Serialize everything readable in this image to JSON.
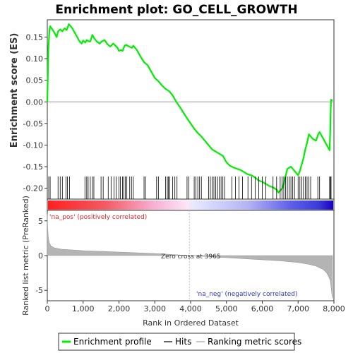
{
  "chart_data": [
    {
      "type": "line",
      "panel": "enrichment",
      "title": "Enrichment plot: GO_CELL_GROWTH",
      "ylabel": "Enrichment score (ES)",
      "xlim": [
        0,
        8000
      ],
      "ylim": [
        -0.225,
        0.19
      ],
      "yticks": [
        -0.2,
        -0.15,
        -0.1,
        -0.05,
        0.0,
        0.05,
        0.1,
        0.15
      ],
      "ytick_labels": [
        "-0.20",
        "-0.15",
        "-0.10",
        "-0.05",
        "0.00",
        "0.05",
        "0.10",
        "0.15"
      ],
      "series": [
        {
          "name": "Enrichment profile",
          "color": "#00ee00",
          "x": [
            0,
            30,
            60,
            80,
            200,
            260,
            300,
            360,
            420,
            480,
            540,
            600,
            700,
            800,
            900,
            960,
            1000,
            1060,
            1100,
            1160,
            1200,
            1260,
            1300,
            1380,
            1460,
            1520,
            1600,
            1680,
            1760,
            1840,
            1900,
            1960,
            2000,
            2060,
            2100,
            2160,
            2200,
            2280,
            2360,
            2400,
            2500,
            2600,
            2700,
            2800,
            2900,
            3000,
            3100,
            3200,
            3300,
            3400,
            3500,
            3600,
            3700,
            3800,
            3900,
            4000,
            4100,
            4200,
            4300,
            4400,
            4500,
            4600,
            4700,
            4800,
            4900,
            5000,
            5100,
            5200,
            5300,
            5400,
            5500,
            5600,
            5700,
            5800,
            5900,
            6000,
            6100,
            6200,
            6300,
            6400,
            6450,
            6500,
            6560,
            6600,
            6640,
            6700,
            6800,
            6900,
            7000,
            7050,
            7100,
            7150,
            7200,
            7250,
            7300,
            7400,
            7500,
            7560,
            7600,
            7700,
            7800,
            7880,
            7900,
            7910,
            7920,
            7960
          ],
          "y": [
            0.0,
            0.12,
            0.165,
            0.175,
            0.16,
            0.15,
            0.163,
            0.168,
            0.163,
            0.17,
            0.166,
            0.18,
            0.17,
            0.155,
            0.14,
            0.135,
            0.142,
            0.137,
            0.143,
            0.14,
            0.14,
            0.155,
            0.148,
            0.14,
            0.135,
            0.14,
            0.143,
            0.133,
            0.128,
            0.135,
            0.13,
            0.125,
            0.118,
            0.12,
            0.118,
            0.13,
            0.132,
            0.128,
            0.125,
            0.13,
            0.12,
            0.105,
            0.092,
            0.085,
            0.07,
            0.055,
            0.048,
            0.038,
            0.03,
            0.025,
            0.015,
            0.0,
            -0.012,
            -0.025,
            -0.038,
            -0.05,
            -0.062,
            -0.072,
            -0.08,
            -0.09,
            -0.1,
            -0.11,
            -0.115,
            -0.12,
            -0.125,
            -0.14,
            -0.148,
            -0.152,
            -0.155,
            -0.158,
            -0.163,
            -0.168,
            -0.17,
            -0.175,
            -0.182,
            -0.185,
            -0.19,
            -0.195,
            -0.198,
            -0.203,
            -0.21,
            -0.205,
            -0.2,
            -0.19,
            -0.175,
            -0.155,
            -0.15,
            -0.16,
            -0.17,
            -0.16,
            -0.145,
            -0.13,
            -0.11,
            -0.095,
            -0.075,
            -0.085,
            -0.09,
            -0.075,
            -0.07,
            -0.085,
            -0.1,
            -0.112,
            -0.06,
            -0.02,
            0.005,
            0.003
          ]
        }
      ]
    },
    {
      "type": "scatter",
      "panel": "hits",
      "series": [
        {
          "name": "Hits",
          "x": [
            40,
            80,
            300,
            360,
            420,
            520,
            560,
            620,
            1050,
            1100,
            1140,
            1200,
            1260,
            1300,
            1500,
            1560,
            1700,
            1780,
            1860,
            1920,
            2000,
            2040,
            2100,
            2140,
            2180,
            2220,
            2300,
            2350,
            2400,
            2700,
            2740,
            3050,
            3100,
            3300,
            3350,
            3380,
            3420,
            3500,
            3560,
            3620,
            3900,
            3950,
            4100,
            4150,
            4200,
            4250,
            4300,
            4500,
            4550,
            4600,
            4650,
            4700,
            4750,
            4800,
            4850,
            4900,
            4950,
            5150,
            5250,
            5350,
            5450,
            5600,
            5700,
            5800,
            5900,
            6000,
            6100,
            6300,
            6400,
            6500,
            6550,
            6600,
            6650,
            6700,
            6750,
            6800,
            6850,
            6900,
            7000,
            7050,
            7100,
            7150,
            7200,
            7250,
            7300,
            7350,
            7550,
            7600,
            7880,
            7900,
            7920
          ]
        }
      ]
    },
    {
      "type": "area",
      "panel": "ranked-metric",
      "xlabel": "Rank in Ordered Dataset",
      "ylabel": "Ranked list metric (PreRanked)",
      "xlim": [
        0,
        8000
      ],
      "ylim": [
        -6.5,
        6.5
      ],
      "xticks": [
        0,
        1000,
        2000,
        3000,
        4000,
        5000,
        6000,
        7000,
        8000
      ],
      "xtick_labels": [
        "0",
        "1,000",
        "2,000",
        "3,000",
        "4,000",
        "5,000",
        "6,000",
        "7,000",
        "8,000"
      ],
      "yticks": [
        -5,
        0,
        5
      ],
      "ytick_labels": [
        "-5",
        "0",
        "5"
      ],
      "series": [
        {
          "name": "Ranking metric scores",
          "x": [
            0,
            10,
            30,
            60,
            100,
            200,
            400,
            700,
            1000,
            1500,
            2000,
            2500,
            3000,
            3500,
            3965,
            4500,
            5000,
            5500,
            6000,
            6500,
            7000,
            7300,
            7500,
            7700,
            7800,
            7850,
            7900,
            7920,
            7940,
            7960
          ],
          "y": [
            6.0,
            4.0,
            2.5,
            1.8,
            1.4,
            1.1,
            0.9,
            0.8,
            0.7,
            0.6,
            0.5,
            0.4,
            0.3,
            0.15,
            0.0,
            -0.15,
            -0.3,
            -0.45,
            -0.6,
            -0.75,
            -1.0,
            -1.25,
            -1.5,
            -2.0,
            -2.5,
            -3.0,
            -3.6,
            -4.5,
            -5.5,
            -6.2
          ]
        }
      ],
      "annotations": {
        "zero_cross": "Zero cross at 3965",
        "zero_cross_x": 3965,
        "pos_label": "'na_pos' (positively correlated)",
        "neg_label": "'na_neg' (negatively correlated)"
      }
    }
  ],
  "legend": {
    "items": [
      "Enrichment profile",
      "Hits",
      "Ranking metric scores"
    ]
  },
  "colors": {
    "profile": "#00ee00",
    "hits": "#000000",
    "metric": "#a0a0a0",
    "pos_text": "#e8242c",
    "neg_text": "#2a36d4",
    "zero_line": "#c0c0c0"
  }
}
